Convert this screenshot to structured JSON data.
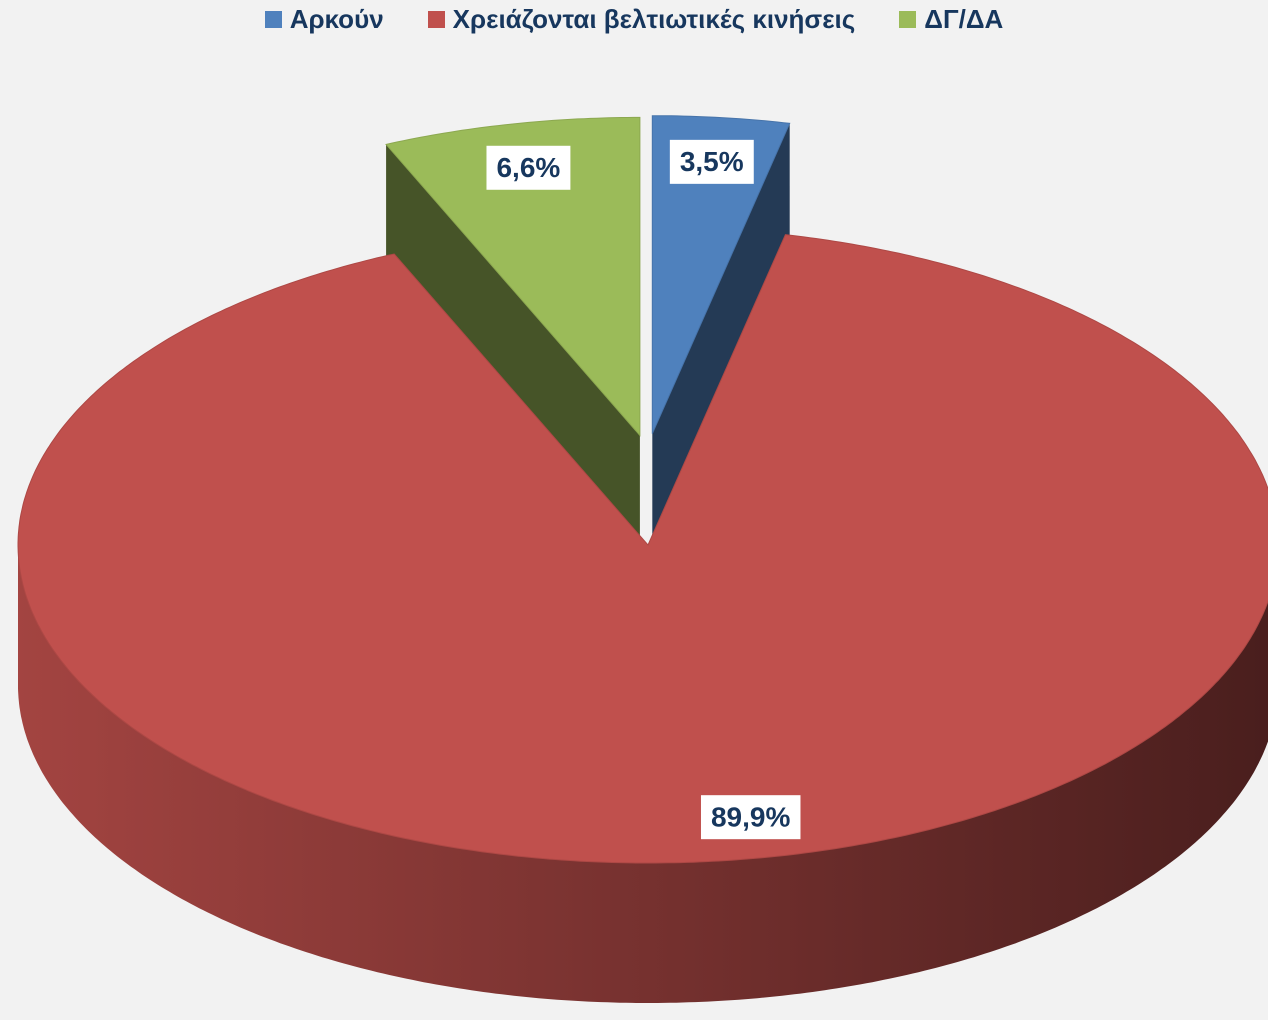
{
  "chart_data": {
    "type": "pie",
    "categories": [
      "Αρκούν",
      "Χρειάζονται βελτιωτικές κινήσεις",
      "ΔΓ/ΔΑ"
    ],
    "values": [
      3.5,
      89.9,
      6.6
    ],
    "value_labels": [
      "3,5%",
      "89,9%",
      "6,6%"
    ],
    "colors": [
      "#4f81bd",
      "#c0504d",
      "#9bbb59"
    ],
    "legend": "top"
  }
}
